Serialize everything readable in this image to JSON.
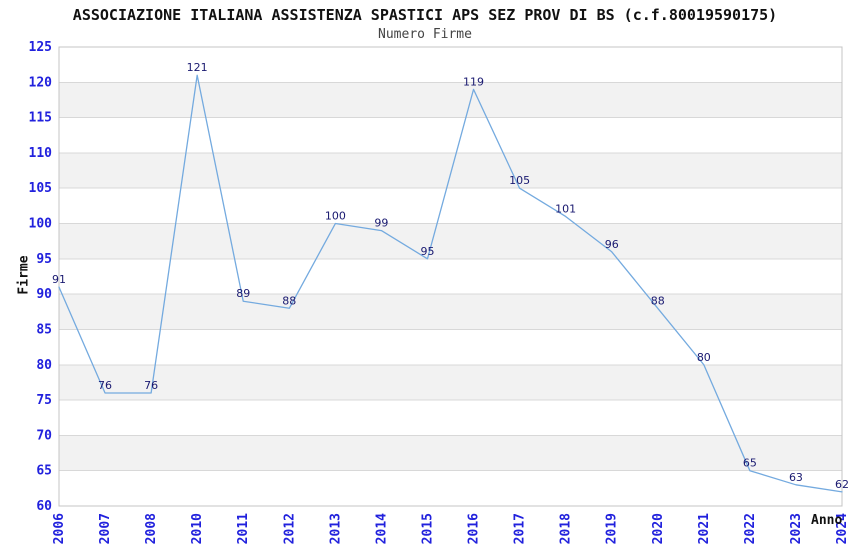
{
  "chart_data": {
    "type": "line",
    "title": "ASSOCIAZIONE ITALIANA ASSISTENZA SPASTICI APS SEZ PROV DI BS (c.f.80019590175)",
    "subtitle": "Numero Firme",
    "xlabel": "Anno",
    "ylabel": "Firme",
    "categories": [
      "2006",
      "2007",
      "2008",
      "2010",
      "2011",
      "2012",
      "2013",
      "2014",
      "2015",
      "2016",
      "2017",
      "2018",
      "2019",
      "2020",
      "2021",
      "2022",
      "2023",
      "2024"
    ],
    "values": [
      91,
      76,
      76,
      121,
      89,
      88,
      100,
      99,
      95,
      119,
      105,
      101,
      96,
      88,
      80,
      65,
      63,
      62
    ],
    "ylim": [
      60,
      125
    ],
    "ytick_step": 5,
    "grid": "horizontal-only",
    "banded_background": true,
    "legend": "none",
    "data_labels": true,
    "note_missing_year": "2009 absent from x axis",
    "colors": {
      "line": "#74aadf",
      "tick_label": "#2121dd",
      "data_label": "#191970",
      "band": "#f2f2f2",
      "grid": "#d8d8d8",
      "border": "#c4c4c4",
      "title": "#111111",
      "subtitle": "#444444",
      "background": "#ffffff"
    }
  }
}
